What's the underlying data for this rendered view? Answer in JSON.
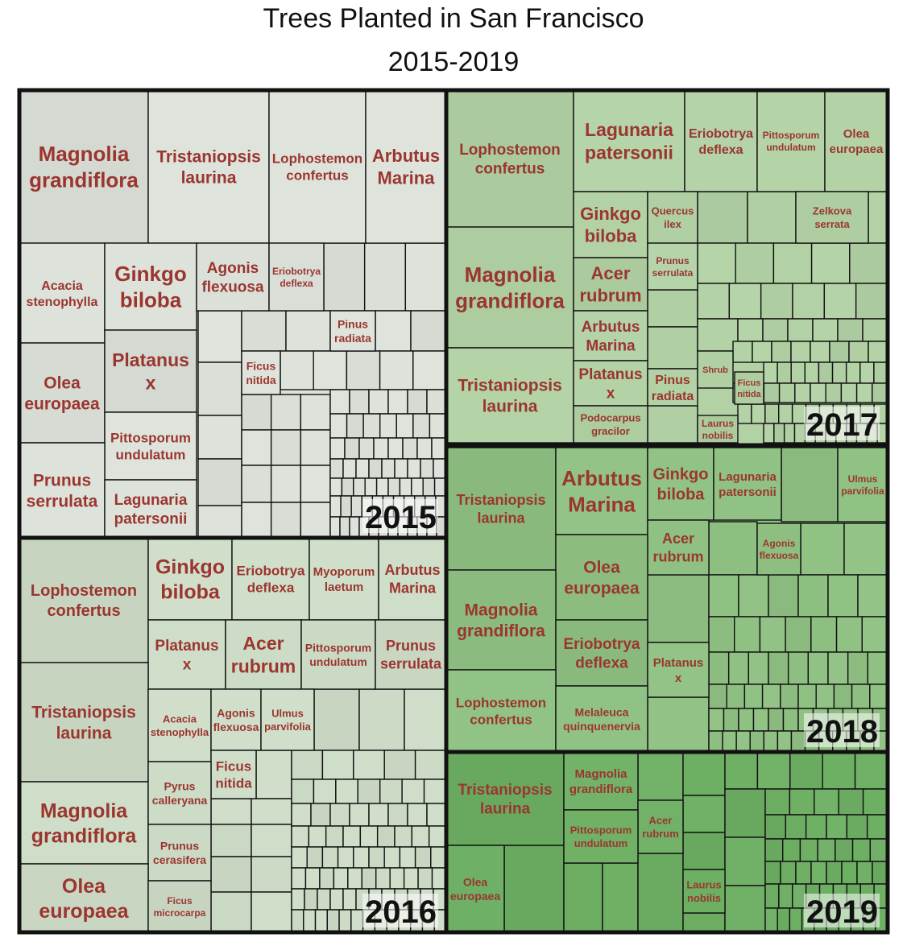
{
  "chart_data": {
    "type": "treemap",
    "title": "Trees Planted in San Francisco",
    "subtitle": "2015-2019",
    "colors": {
      "2015": "#dde3da",
      "2016": "#cfdec8",
      "2017": "#b2d2a5",
      "2018": "#8fc182",
      "2019": "#6daf63",
      "label": "#9b3530"
    },
    "years": [
      {
        "year": "2015",
        "species": [
          "Magnolia grandiflora",
          "Tristaniopsis laurina",
          "Lophostemon confertus",
          "Arbutus Marina",
          "Acacia stenophylla",
          "Ginkgo biloba",
          "Agonis flexuosa",
          "Eriobotrya deflexa",
          "Olea europaea",
          "Platanus x",
          "Pinus radiata",
          "Ficus nitida",
          "Pittosporum undulatum",
          "Prunus serrulata",
          "Lagunaria patersonii"
        ]
      },
      {
        "year": "2016",
        "species": [
          "Lophostemon confertus",
          "Ginkgo biloba",
          "Eriobotrya deflexa",
          "Myoporum laetum",
          "Arbutus Marina",
          "Platanus x",
          "Acer rubrum",
          "Pittosporum undulatum",
          "Prunus serrulata",
          "Tristaniopsis laurina",
          "Acacia stenophylla",
          "Agonis flexuosa",
          "Ulmus parvifolia",
          "Ficus nitida",
          "Magnolia grandiflora",
          "Pyrus calleryana",
          "Prunus cerasifera",
          "Olea europaea",
          "Ficus microcarpa"
        ]
      },
      {
        "year": "2017",
        "species": [
          "Lophostemon confertus",
          "Lagunaria patersonii",
          "Eriobotrya deflexa",
          "Pittosporum undulatum",
          "Olea europaea",
          "Ginkgo biloba",
          "Quercus ilex",
          "Zelkova serrata",
          "Magnolia grandiflora",
          "Acer rubrum",
          "Prunus serrulata",
          "Arbutus Marina",
          "Tristaniopsis laurina",
          "Platanus x",
          "Pinus radiata",
          "Shrub",
          "Ficus nitida",
          "Podocarpus gracilor",
          "Laurus nobilis"
        ]
      },
      {
        "year": "2018",
        "species": [
          "Tristaniopsis laurina",
          "Arbutus Marina",
          "Ginkgo biloba",
          "Lagunaria patersonii",
          "Ulmus parvifolia",
          "Acer rubrum",
          "Agonis flexuosa",
          "Olea europaea",
          "Magnolia grandiflora",
          "Eriobotrya deflexa",
          "Platanus x",
          "Lophostemon confertus",
          "Melaleuca quinquenervia"
        ]
      },
      {
        "year": "2019",
        "species": [
          "Tristaniopsis laurina",
          "Magnolia grandiflora",
          "Acer rubrum",
          "Pittosporum undulatum",
          "Olea europaea",
          "Laurus nobilis"
        ]
      }
    ]
  }
}
